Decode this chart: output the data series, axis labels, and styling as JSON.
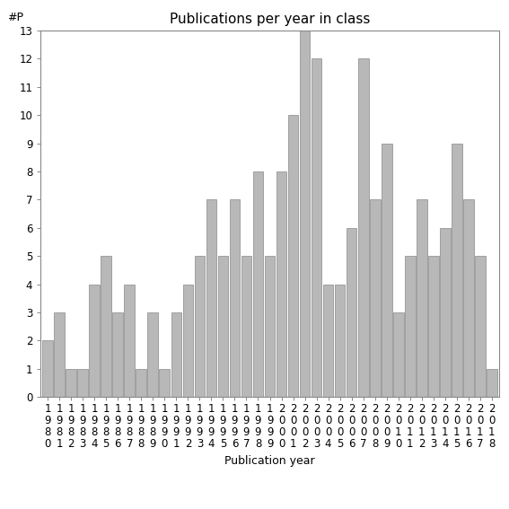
{
  "title": "Publications per year in class",
  "xlabel": "Publication year",
  "ylabel": "#P",
  "years": [
    1980,
    1981,
    1982,
    1983,
    1984,
    1985,
    1986,
    1987,
    1988,
    1989,
    1990,
    1991,
    1992,
    1993,
    1994,
    1995,
    1996,
    1997,
    1998,
    1999,
    2000,
    2001,
    2002,
    2003,
    2004,
    2005,
    2006,
    2007,
    2008,
    2009,
    2010,
    2011,
    2012,
    2013,
    2014,
    2015,
    2016,
    2017,
    2018
  ],
  "values": [
    2,
    3,
    1,
    1,
    4,
    5,
    3,
    4,
    1,
    3,
    1,
    3,
    4,
    5,
    7,
    5,
    7,
    5,
    8,
    5,
    8,
    10,
    13,
    12,
    4,
    4,
    6,
    12,
    7,
    9,
    3,
    5,
    7,
    5,
    6,
    9,
    7,
    5,
    1
  ],
  "bar_color": "#b8b8b8",
  "bar_edge_color": "#888888",
  "ylim": [
    0,
    13
  ],
  "yticks": [
    0,
    1,
    2,
    3,
    4,
    5,
    6,
    7,
    8,
    9,
    10,
    11,
    12,
    13
  ],
  "bg_color": "#ffffff",
  "title_fontsize": 11,
  "label_fontsize": 9,
  "tick_fontsize": 8.5
}
